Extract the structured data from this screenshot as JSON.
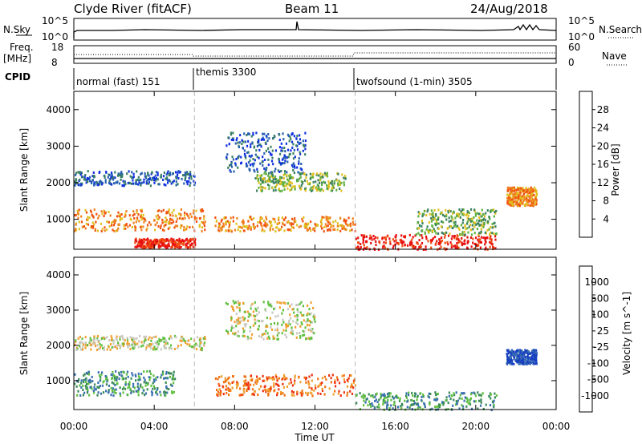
{
  "header": {
    "station": "Clyde River (fitACF)",
    "beam": "Beam 11",
    "date": "24/Aug/2018"
  },
  "top_panels": {
    "nsky_label": "N.Sky",
    "nsky_ticks": [
      "10^5",
      "10^0"
    ],
    "nsearch_label": "N.Search",
    "nsearch_ticks": [
      "10^5",
      "10^0"
    ],
    "freq_label": "Freq.",
    "freq_unit": "[MHz]",
    "freq_ticks": [
      "18",
      "8"
    ],
    "nave_label": "Nave",
    "nave_ticks": [
      "60",
      "0"
    ],
    "cpid_label": "CPID",
    "cpid_segments": [
      {
        "label": "normal (fast) 151",
        "start_hour": 0
      },
      {
        "label": "themis 3300",
        "start_hour": 6
      },
      {
        "label": "twofsound (1-min) 3505",
        "start_hour": 14
      }
    ]
  },
  "chart_data": [
    {
      "type": "heatmap",
      "title": "",
      "ylabel": "Slant Range [km]",
      "xlabel": "",
      "xlim": [
        "00:00",
        "24:00"
      ],
      "ylim": [
        180,
        4500
      ],
      "y_ticks": [
        "1000",
        "2000",
        "3000",
        "4000"
      ],
      "colorbar": {
        "label": "Power [dB]",
        "ticks": [
          "4",
          "8",
          "12",
          "16",
          "20",
          "24",
          "28"
        ],
        "colors": [
          "#1030e0",
          "#2860b0",
          "#3a8060",
          "#60b040",
          "#e0c020",
          "#f08020",
          "#f05010",
          "#e81010"
        ]
      },
      "vertical_markers_hour": [
        6,
        14
      ],
      "scatter_regions": [
        {
          "t0": 0.0,
          "t1": 6.0,
          "r0": 1950,
          "r1": 2350,
          "level": "low"
        },
        {
          "t0": 0.0,
          "t1": 6.5,
          "r0": 700,
          "r1": 1300,
          "level": "high"
        },
        {
          "t0": 3.0,
          "t1": 6.0,
          "r0": 250,
          "r1": 500,
          "level": "max"
        },
        {
          "t0": 7.5,
          "t1": 11.5,
          "r0": 2300,
          "r1": 3400,
          "level": "low"
        },
        {
          "t0": 7.0,
          "t1": 14.0,
          "r0": 700,
          "r1": 1100,
          "level": "high"
        },
        {
          "t0": 9.0,
          "t1": 13.5,
          "r0": 1800,
          "r1": 2300,
          "level": "mid"
        },
        {
          "t0": 14.0,
          "t1": 21.0,
          "r0": 200,
          "r1": 600,
          "level": "max"
        },
        {
          "t0": 17.0,
          "t1": 21.0,
          "r0": 600,
          "r1": 1300,
          "level": "mid"
        },
        {
          "t0": 21.5,
          "t1": 23.0,
          "r0": 1400,
          "r1": 1900,
          "level": "high"
        }
      ]
    },
    {
      "type": "heatmap",
      "title": "",
      "ylabel": "Slant Range [km]",
      "xlabel": "Time UT",
      "xlim": [
        "00:00",
        "24:00"
      ],
      "ylim": [
        180,
        4500
      ],
      "x_ticks": [
        "00:00",
        "04:00",
        "08:00",
        "12:00",
        "16:00",
        "20:00",
        "00:00"
      ],
      "y_ticks": [
        "1000",
        "2000",
        "3000",
        "4000"
      ],
      "colorbar": {
        "label": "Velocity [m s^-1]",
        "ticks": [
          "1000",
          "500",
          "100",
          "25",
          "-25",
          "-100",
          "-500",
          "-1000"
        ],
        "colors": [
          "#1840c0",
          "#3a70b0",
          "#3a8a5a",
          "#60c040",
          "#c8c8c0",
          "#f0a030",
          "#f07010",
          "#f03010",
          "#e81010"
        ]
      },
      "vertical_markers_hour": [
        6,
        14
      ],
      "scatter_regions": [
        {
          "t0": 0.0,
          "t1": 6.5,
          "r0": 1900,
          "r1": 2300,
          "level": "ground"
        },
        {
          "t0": 0.0,
          "t1": 5.0,
          "r0": 600,
          "r1": 1300,
          "level": "toward"
        },
        {
          "t0": 7.5,
          "t1": 12.0,
          "r0": 2200,
          "r1": 3300,
          "level": "ground"
        },
        {
          "t0": 7.0,
          "t1": 14.0,
          "r0": 600,
          "r1": 1200,
          "level": "away"
        },
        {
          "t0": 14.0,
          "t1": 21.0,
          "r0": 200,
          "r1": 700,
          "level": "toward"
        },
        {
          "t0": 21.5,
          "t1": 23.0,
          "r0": 1500,
          "r1": 1900,
          "level": "fast-toward"
        }
      ]
    }
  ]
}
